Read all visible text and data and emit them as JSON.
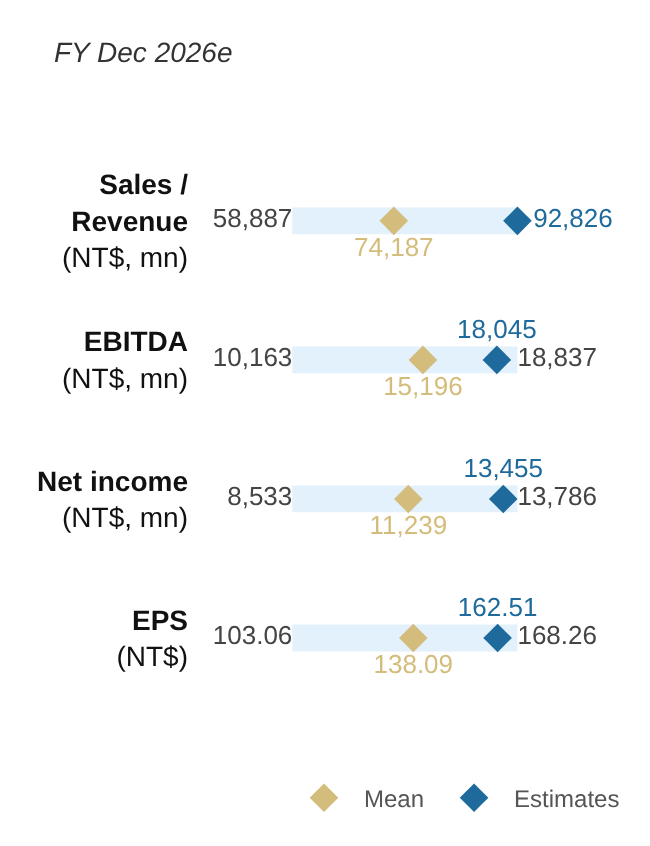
{
  "chart_data": [
    {
      "type": "other",
      "title": "FY Dec 2026e",
      "categories": [
        "Sales /\nRevenue\n(NT$, mn)"
      ],
      "legend": "bottom right",
      "series": [
        {
          "color": "#444444",
          "marker": "none",
          "values": [
            58887
          ],
          "value_labels": [
            "58,887"
          ]
        },
        {
          "name": "Mean",
          "color": "#d4bc7c",
          "marker": "diamond",
          "values": [
            74187
          ],
          "value_labels": [
            "74,187"
          ]
        },
        {
          "name": "Estimates",
          "color": "#1f6a9c",
          "marker": "diamond",
          "values": [
            92826
          ],
          "value_labels": [
            "92,826"
          ]
        }
      ]
    },
    {
      "type": "other",
      "categories": [
        "EBITDA\n(NT$, mn)"
      ],
      "series": [
        {
          "color": "#444444",
          "marker": "none",
          "values": [
            10163
          ],
          "value_labels": [
            "10,163"
          ]
        },
        {
          "color": "#d4bc7c",
          "marker": "diamond",
          "values": [
            15196
          ],
          "value_labels": [
            "15,196"
          ]
        },
        {
          "color": "#1f6a9c",
          "marker": "diamond",
          "values": [
            18045
          ],
          "value_labels": [
            "18,045"
          ]
        },
        {
          "color": "#444444",
          "marker": "none",
          "values": [
            18837
          ],
          "value_labels": [
            "18,837"
          ]
        }
      ]
    },
    {
      "type": "other",
      "categories": [
        "Net income\n(NT$, mn)"
      ],
      "series": [
        {
          "color": "#444444",
          "marker": "none",
          "values": [
            8533
          ],
          "value_labels": [
            "8,533"
          ]
        },
        {
          "color": "#d4bc7c",
          "marker": "diamond",
          "values": [
            11239
          ],
          "value_labels": [
            "11,239"
          ]
        },
        {
          "color": "#1f6a9c",
          "marker": "diamond",
          "values": [
            13455
          ],
          "value_labels": [
            "13,455"
          ]
        },
        {
          "color": "#444444",
          "marker": "none",
          "values": [
            13786
          ],
          "value_labels": [
            "13,786"
          ]
        }
      ]
    },
    {
      "type": "other",
      "categories": [
        "EPS\n(NT$)"
      ],
      "series": [
        {
          "color": "#444444",
          "marker": "none",
          "values": [
            103.06
          ],
          "value_labels": [
            "103.06"
          ]
        },
        {
          "color": "#d4bc7c",
          "marker": "diamond",
          "values": [
            138.09
          ],
          "value_labels": [
            "138.09"
          ]
        },
        {
          "color": "#1f6a9c",
          "marker": "diamond",
          "values": [
            162.51
          ],
          "value_labels": [
            "162.51"
          ]
        },
        {
          "color": "#444444",
          "marker": "none",
          "values": [
            168.26
          ],
          "value_labels": [
            "168.26"
          ]
        }
      ]
    }
  ]
}
